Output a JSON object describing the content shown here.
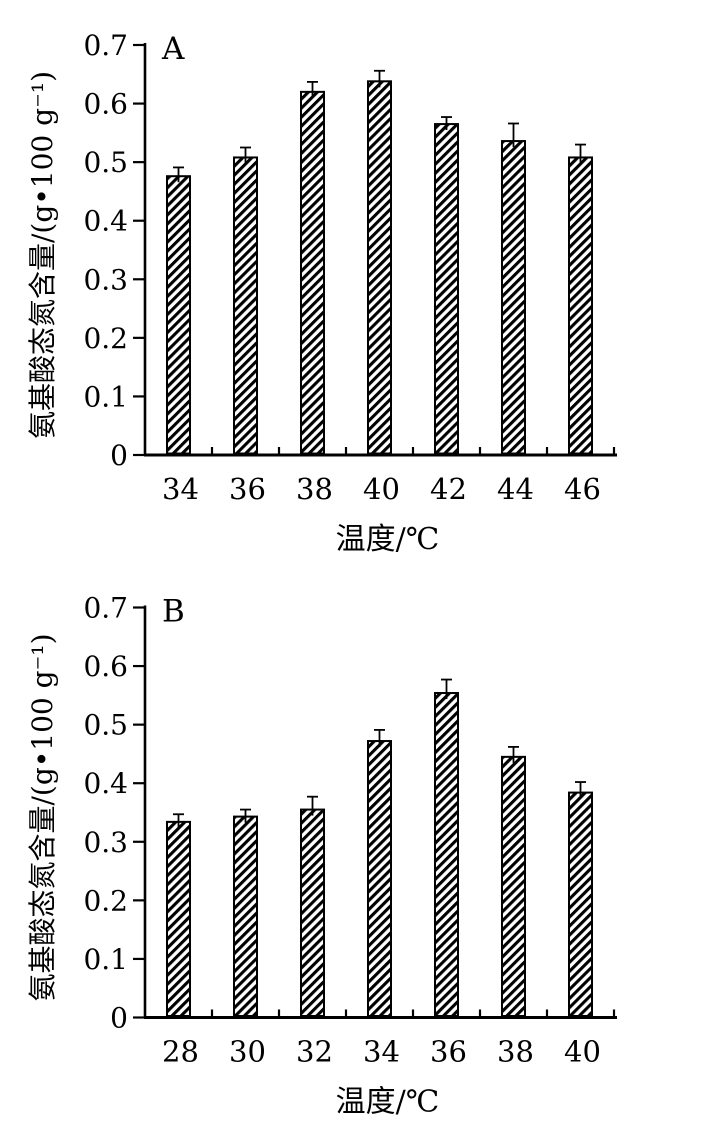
{
  "figure": {
    "background": "#ffffff",
    "ink": "#000000",
    "description_labels": {
      "panel_a": "A",
      "panel_b": "B"
    }
  },
  "chart_data": [
    {
      "type": "bar",
      "panel_label": "A",
      "title": "",
      "xlabel": "温度/℃",
      "ylabel": "氨基酸态氮含量/(g•100 g⁻¹)",
      "categories": [
        "34",
        "36",
        "38",
        "40",
        "42",
        "44",
        "46"
      ],
      "values": [
        0.476,
        0.508,
        0.62,
        0.638,
        0.565,
        0.536,
        0.508
      ],
      "errors": [
        0.015,
        0.017,
        0.017,
        0.018,
        0.012,
        0.03,
        0.022
      ],
      "ylim": [
        0,
        0.7
      ],
      "y_ticks": [
        "0",
        "0.1",
        "0.2",
        "0.3",
        "0.4",
        "0.5",
        "0.6",
        "0.7"
      ],
      "grid": false,
      "legend": "none",
      "bar_fill": "black-diagonal-hatch",
      "error_bars": "upper"
    },
    {
      "type": "bar",
      "panel_label": "B",
      "title": "",
      "xlabel": "温度/℃",
      "ylabel": "氨基酸态氮含量/(g•100 g⁻¹)",
      "categories": [
        "28",
        "30",
        "32",
        "34",
        "36",
        "38",
        "40"
      ],
      "values": [
        0.334,
        0.343,
        0.355,
        0.472,
        0.554,
        0.445,
        0.384
      ],
      "errors": [
        0.013,
        0.012,
        0.022,
        0.019,
        0.023,
        0.017,
        0.018
      ],
      "ylim": [
        0,
        0.7
      ],
      "y_ticks": [
        "0",
        "0.1",
        "0.2",
        "0.3",
        "0.4",
        "0.5",
        "0.6",
        "0.7"
      ],
      "grid": false,
      "legend": "none",
      "bar_fill": "black-diagonal-hatch",
      "error_bars": "upper"
    }
  ]
}
